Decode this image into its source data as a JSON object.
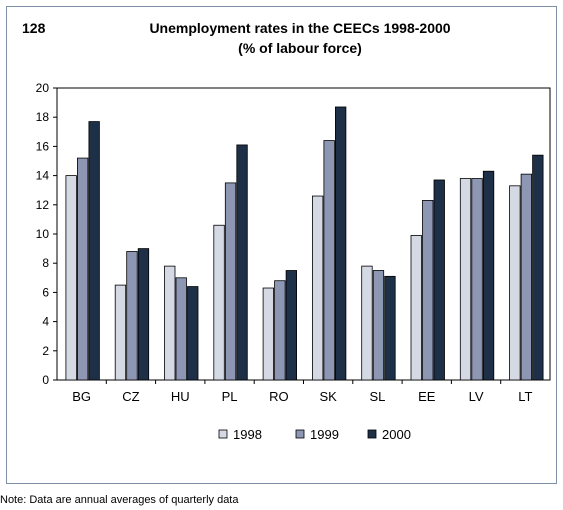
{
  "figure_number": "128",
  "note": "Note: Data are annual averages of quarterly data",
  "chart_data": {
    "type": "bar",
    "title": "Unemployment rates in the CEECs 1998-2000",
    "subtitle": "(% of labour force)",
    "categories": [
      "BG",
      "CZ",
      "HU",
      "PL",
      "RO",
      "SK",
      "SL",
      "EE",
      "LV",
      "LT"
    ],
    "series": [
      {
        "name": "1998",
        "color": "#d4d9e4",
        "values": [
          14.0,
          6.5,
          7.8,
          10.6,
          6.3,
          12.6,
          7.8,
          9.9,
          13.8,
          13.3
        ]
      },
      {
        "name": "1999",
        "color": "#8d97b4",
        "values": [
          15.2,
          8.8,
          7.0,
          13.5,
          6.8,
          16.4,
          7.5,
          12.3,
          13.8,
          14.1
        ]
      },
      {
        "name": "2000",
        "color": "#1e2f48",
        "values": [
          17.7,
          9.0,
          6.4,
          16.1,
          7.5,
          18.7,
          7.1,
          13.7,
          14.3,
          15.4
        ]
      }
    ],
    "yticks": [
      "0",
      "2",
      "4",
      "6",
      "8",
      "10",
      "12",
      "14",
      "16",
      "18",
      "20"
    ],
    "ylim": [
      0,
      20
    ],
    "xlabel": "",
    "ylabel": "",
    "grid": false,
    "legend_position": "bottom-center"
  }
}
